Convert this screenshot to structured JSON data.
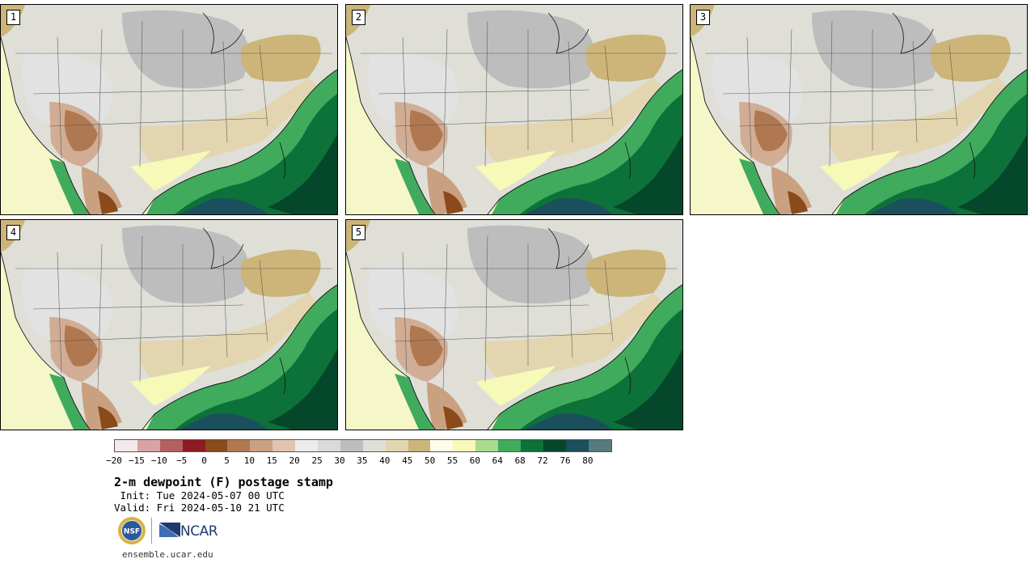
{
  "panels": [
    {
      "label": "1"
    },
    {
      "label": "2"
    },
    {
      "label": "3"
    },
    {
      "label": "4"
    },
    {
      "label": "5"
    }
  ],
  "colorbar": {
    "colors": [
      "#f5e9e9",
      "#d9a3a3",
      "#b56060",
      "#8e1a22",
      "#8b4a1a",
      "#b07850",
      "#c9a080",
      "#e0c4b0",
      "#ececec",
      "#dadada",
      "#bdbdbd",
      "#dfdfd8",
      "#e2d5b0",
      "#cdb478",
      "#fdfde8",
      "#f6f9b8",
      "#a8dc8c",
      "#41ab5d",
      "#0d7239",
      "#05472a",
      "#1c4f5d",
      "#567a7d"
    ],
    "ticks": [
      "−20",
      "−15",
      "−10",
      "−5",
      "0",
      "5",
      "10",
      "15",
      "20",
      "25",
      "30",
      "35",
      "40",
      "45",
      "50",
      "55",
      "60",
      "64",
      "68",
      "72",
      "76",
      "80"
    ]
  },
  "title": "2-m dewpoint (F) postage stamp",
  "init": " Init: Tue 2024-05-07 00 UTC",
  "valid": "Valid: Fri 2024-05-10 21 UTC",
  "logos": {
    "nsf": "NSF",
    "ncar": "NCAR"
  },
  "site": "ensemble.ucar.edu"
}
